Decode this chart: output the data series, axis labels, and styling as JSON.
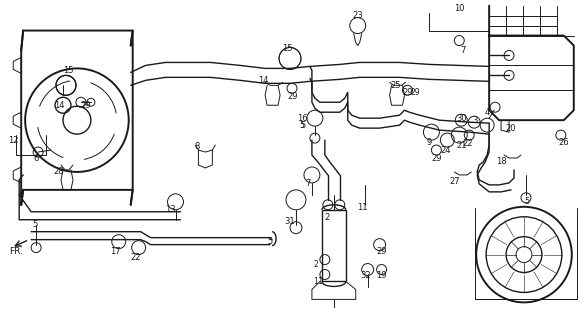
{
  "bg_color": "#ffffff",
  "fig_width": 5.85,
  "fig_height": 3.2,
  "dpi": 100,
  "line_color": "#1a1a1a",
  "label_fontsize": 6.0
}
